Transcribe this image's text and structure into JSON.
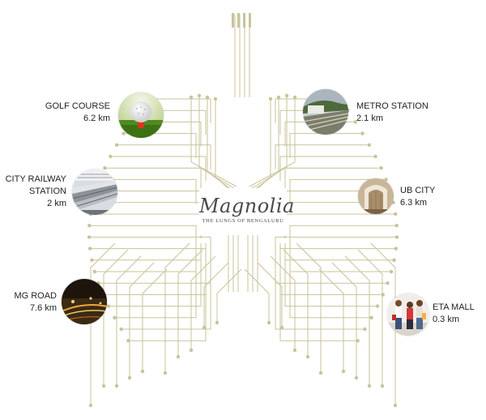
{
  "brand": {
    "name": "Magnolia",
    "tagline": "THE LUNGS OF BENGALURU"
  },
  "landmarks": [
    {
      "id": "golf-course",
      "name": "GOLF COURSE",
      "distance": "6.2 km",
      "icon": "golf-ball-photo"
    },
    {
      "id": "city-railway-station",
      "name": "CITY RAILWAY STATION",
      "name_line1": "CITY RAILWAY",
      "name_line2": "STATION",
      "distance": "2 km",
      "icon": "railway-station-photo"
    },
    {
      "id": "mg-road",
      "name": "MG ROAD",
      "distance": "7.6 km",
      "icon": "night-road-photo"
    },
    {
      "id": "metro-station",
      "name": "METRO STATION",
      "distance": "2.1 km",
      "icon": "metro-tracks-photo"
    },
    {
      "id": "ub-city",
      "name": "UB CITY",
      "distance": "6.3 km",
      "icon": "ub-city-interior-photo"
    },
    {
      "id": "eta-mall",
      "name": "ETA MALL",
      "distance": "0.3 km",
      "icon": "shoppers-photo"
    }
  ],
  "colors": {
    "trace": "#c9c39a",
    "text": "#222222",
    "brand": "#4a4a4a"
  }
}
